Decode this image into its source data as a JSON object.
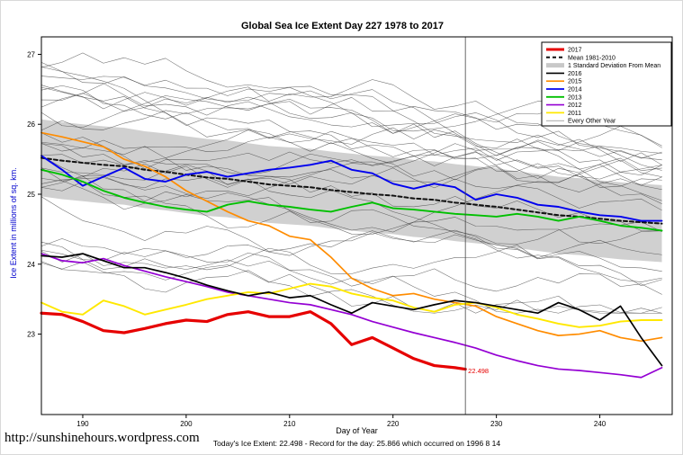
{
  "title": "Global Sea Ice Extent Day 227 1978 to 2017",
  "footer": {
    "url": "http://sunshinehours.wordpress.com",
    "note": "Today's Ice Extent: 22.498 - Record for the day: 25.866 which occurred on 1996 8 14"
  },
  "colors": {
    "ylabel": "#0000cd",
    "frame": "#000000",
    "vline": "#444444",
    "band_fill": "#c8c8c8"
  },
  "chart_data": {
    "type": "line",
    "title": "Global Sea Ice Extent Day 227 1978 to 2017",
    "xlabel": "Day of Year",
    "ylabel": "Ice Extent in millions of sq. km.",
    "xlim": [
      186,
      247
    ],
    "ylim": [
      21.85,
      27.25
    ],
    "xticks": [
      190,
      200,
      210,
      220,
      230,
      240
    ],
    "yticks": [
      23,
      24,
      25,
      26,
      27
    ],
    "grid": false,
    "legend_position": "top-right",
    "vline_x": 227,
    "annotation": {
      "text": "22.498",
      "x": 227,
      "y": 22.44,
      "color": "#e60000"
    },
    "x": [
      186,
      188,
      190,
      192,
      194,
      196,
      198,
      200,
      202,
      204,
      206,
      208,
      210,
      212,
      214,
      216,
      218,
      220,
      222,
      224,
      226,
      228,
      230,
      232,
      234,
      236,
      238,
      240,
      242,
      244,
      246
    ],
    "band": {
      "label": "1 Standard Deviation From Mean",
      "color": "#c8c8c8",
      "mean_ref": "Mean 1981-2010",
      "half_width": 0.55
    },
    "series": [
      {
        "name": "Mean 1981-2010",
        "color": "#111111",
        "width": 2,
        "dash": "4,3",
        "values": [
          25.52,
          25.48,
          25.45,
          25.42,
          25.4,
          25.35,
          25.32,
          25.28,
          25.24,
          25.22,
          25.18,
          25.14,
          25.12,
          25.1,
          25.06,
          25.03,
          25.0,
          24.98,
          24.94,
          24.92,
          24.88,
          24.85,
          24.82,
          24.78,
          24.74,
          24.7,
          24.68,
          24.65,
          24.62,
          24.6,
          24.58
        ]
      },
      {
        "name": "2015",
        "color": "#ff8c00",
        "width": 1.7,
        "values": [
          25.88,
          25.82,
          25.75,
          25.68,
          25.5,
          25.4,
          25.25,
          25.05,
          24.9,
          24.75,
          24.62,
          24.55,
          24.4,
          24.35,
          24.1,
          23.8,
          23.65,
          23.55,
          23.58,
          23.5,
          23.45,
          23.4,
          23.25,
          23.15,
          23.05,
          22.98,
          23.0,
          23.05,
          22.95,
          22.9,
          22.95
        ]
      },
      {
        "name": "2014",
        "color": "#0000ee",
        "width": 1.9,
        "values": [
          25.55,
          25.35,
          25.12,
          25.25,
          25.38,
          25.22,
          25.18,
          25.28,
          25.32,
          25.25,
          25.3,
          25.35,
          25.38,
          25.42,
          25.48,
          25.35,
          25.3,
          25.15,
          25.08,
          25.15,
          25.1,
          24.92,
          25.0,
          24.95,
          24.85,
          24.82,
          24.75,
          24.7,
          24.68,
          24.62,
          24.62
        ]
      },
      {
        "name": "2013",
        "color": "#00c000",
        "width": 1.9,
        "values": [
          25.35,
          25.28,
          25.18,
          25.05,
          24.95,
          24.88,
          24.82,
          24.78,
          24.75,
          24.85,
          24.9,
          24.85,
          24.82,
          24.78,
          24.75,
          24.82,
          24.88,
          24.8,
          24.78,
          24.75,
          24.72,
          24.7,
          24.68,
          24.72,
          24.68,
          24.62,
          24.68,
          24.62,
          24.55,
          24.52,
          24.48
        ]
      },
      {
        "name": "2012",
        "color": "#9400d3",
        "width": 1.7,
        "values": [
          24.15,
          24.05,
          24.02,
          24.08,
          23.98,
          23.9,
          23.82,
          23.75,
          23.68,
          23.6,
          23.55,
          23.5,
          23.45,
          23.42,
          23.35,
          23.28,
          23.18,
          23.1,
          23.02,
          22.95,
          22.88,
          22.8,
          22.7,
          22.62,
          22.55,
          22.5,
          22.48,
          22.45,
          22.42,
          22.38,
          22.52
        ]
      },
      {
        "name": "2011",
        "color": "#ffe800",
        "width": 1.9,
        "values": [
          23.45,
          23.32,
          23.28,
          23.48,
          23.4,
          23.28,
          23.35,
          23.42,
          23.5,
          23.55,
          23.6,
          23.58,
          23.65,
          23.72,
          23.68,
          23.58,
          23.52,
          23.48,
          23.38,
          23.32,
          23.42,
          23.45,
          23.38,
          23.28,
          23.22,
          23.15,
          23.1,
          23.12,
          23.18,
          23.2,
          23.2
        ]
      },
      {
        "name": "2016",
        "color": "#000000",
        "width": 1.7,
        "values": [
          24.12,
          24.1,
          24.15,
          24.05,
          23.95,
          23.95,
          23.88,
          23.8,
          23.7,
          23.62,
          23.55,
          23.6,
          23.52,
          23.55,
          23.42,
          23.3,
          23.45,
          23.4,
          23.35,
          23.42,
          23.48,
          23.45,
          23.4,
          23.35,
          23.3,
          23.45,
          23.35,
          23.2,
          23.4,
          22.95,
          22.55
        ]
      },
      {
        "name": "2017",
        "color": "#e60000",
        "width": 3.2,
        "x": [
          186,
          188,
          190,
          192,
          194,
          196,
          198,
          200,
          202,
          204,
          206,
          208,
          210,
          212,
          214,
          216,
          218,
          220,
          222,
          224,
          226,
          227
        ],
        "values": [
          23.3,
          23.28,
          23.18,
          23.05,
          23.02,
          23.08,
          23.15,
          23.2,
          23.18,
          23.28,
          23.32,
          23.25,
          23.25,
          23.32,
          23.15,
          22.85,
          22.95,
          22.8,
          22.65,
          22.55,
          22.52,
          22.498
        ]
      }
    ],
    "other_years": {
      "label": "Every Other Year",
      "color": "#3c3c3c",
      "width": 0.55,
      "opacity": 0.75,
      "count": 30,
      "seed": 20170815,
      "start_range": [
        23.95,
        26.95
      ],
      "drop_range": [
        0.45,
        1.15
      ],
      "noise": 0.17
    },
    "legend": [
      {
        "label": "2017",
        "color": "#e60000",
        "lw": 3
      },
      {
        "label": "Mean 1981-2010",
        "color": "#111111",
        "lw": 2,
        "dash": "4,3"
      },
      {
        "label": "1 Standard Deviation From Mean",
        "color": "#c8c8c8",
        "lw": 5
      },
      {
        "label": "2016",
        "color": "#000000",
        "lw": 1.6
      },
      {
        "label": "2015",
        "color": "#ff8c00",
        "lw": 1.6
      },
      {
        "label": "2014",
        "color": "#0000ee",
        "lw": 1.8
      },
      {
        "label": "2013",
        "color": "#00c000",
        "lw": 1.8
      },
      {
        "label": "2012",
        "color": "#9400d3",
        "lw": 1.6
      },
      {
        "label": "2011",
        "color": "#ffe800",
        "lw": 1.8
      },
      {
        "label": "Every Other Year",
        "color": "#777777",
        "lw": 0.7
      }
    ]
  }
}
